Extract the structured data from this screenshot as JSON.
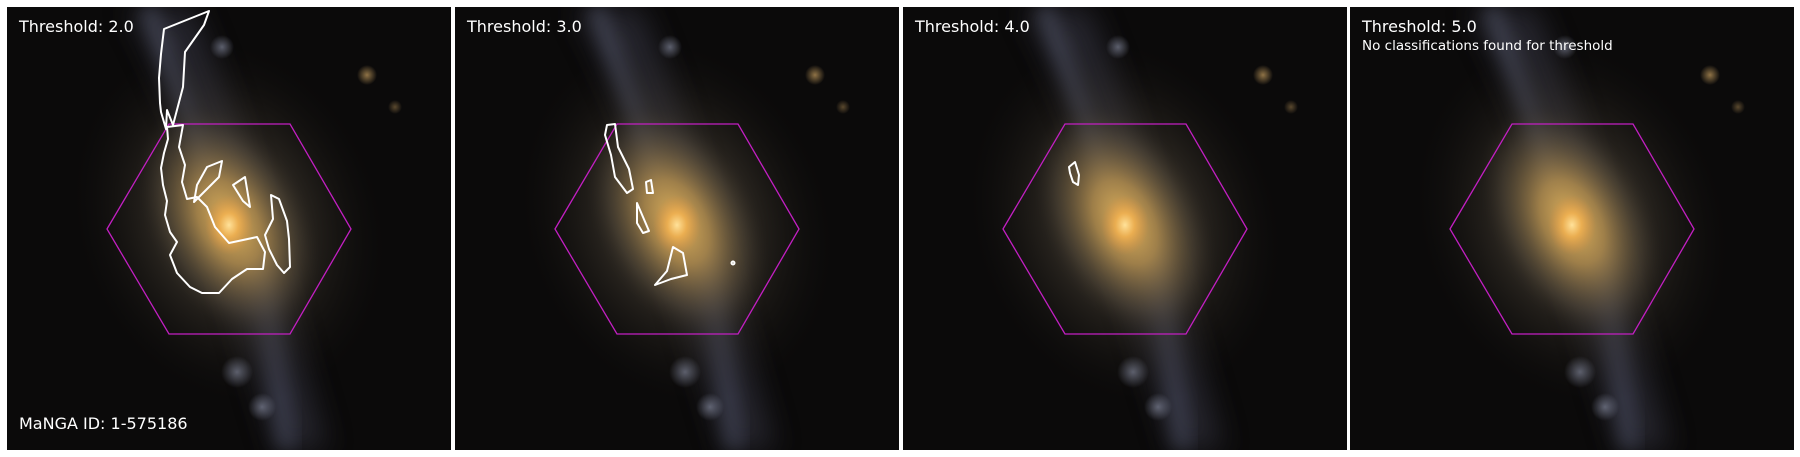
{
  "manga_id_label": "MaNGA ID: 1-575186",
  "colors": {
    "hexagon": "#c21fc2",
    "contour": "#ffffff",
    "background": "#0b0a0a"
  },
  "panels": [
    {
      "threshold_label": "Threshold: 2.0",
      "note": ""
    },
    {
      "threshold_label": "Threshold: 3.0",
      "note": ""
    },
    {
      "threshold_label": "Threshold: 4.0",
      "note": ""
    },
    {
      "threshold_label": "Threshold: 5.0",
      "note": "No classifications found for threshold"
    }
  ]
}
